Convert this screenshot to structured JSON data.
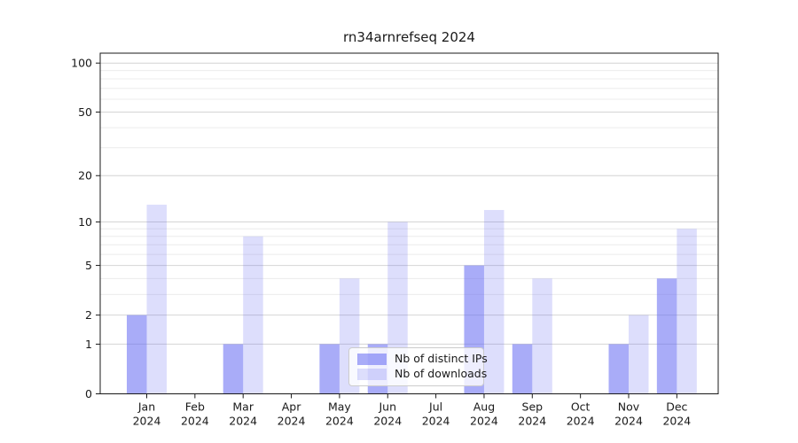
{
  "chart_data": {
    "type": "bar",
    "title": "rn34arnrefseq 2024",
    "categories": [
      "Jan 2024",
      "Feb 2024",
      "Mar 2024",
      "Apr 2024",
      "May 2024",
      "Jun 2024",
      "Jul 2024",
      "Aug 2024",
      "Sep 2024",
      "Oct 2024",
      "Nov 2024",
      "Dec 2024"
    ],
    "series": [
      {
        "name": "Nb of distinct IPs",
        "color": "rgba(99,104,242,0.55)",
        "values": [
          2,
          0,
          1,
          0,
          1,
          1,
          0,
          5,
          1,
          0,
          1,
          4
        ]
      },
      {
        "name": "Nb of downloads",
        "color": "rgba(99,104,242,0.22)",
        "values": [
          13,
          0,
          8,
          0,
          4,
          10,
          0,
          12,
          4,
          0,
          2,
          9
        ]
      }
    ],
    "y_scale": "log10(1+x)",
    "y_major_ticks": [
      0,
      1,
      2,
      5,
      10,
      20,
      50,
      100
    ],
    "y_minor_ticks": [
      3,
      4,
      6,
      7,
      8,
      9,
      30,
      40,
      60,
      70,
      80,
      90
    ],
    "ylim": [
      0,
      115
    ],
    "legend": {
      "position": "lower center"
    },
    "grid": "on",
    "colors": {
      "major_grid": "#d4d4d4",
      "minor_grid": "#ececec",
      "spine": "#1a1a1a",
      "text": "#1a1a1a",
      "legend_border": "#cccccc"
    }
  }
}
